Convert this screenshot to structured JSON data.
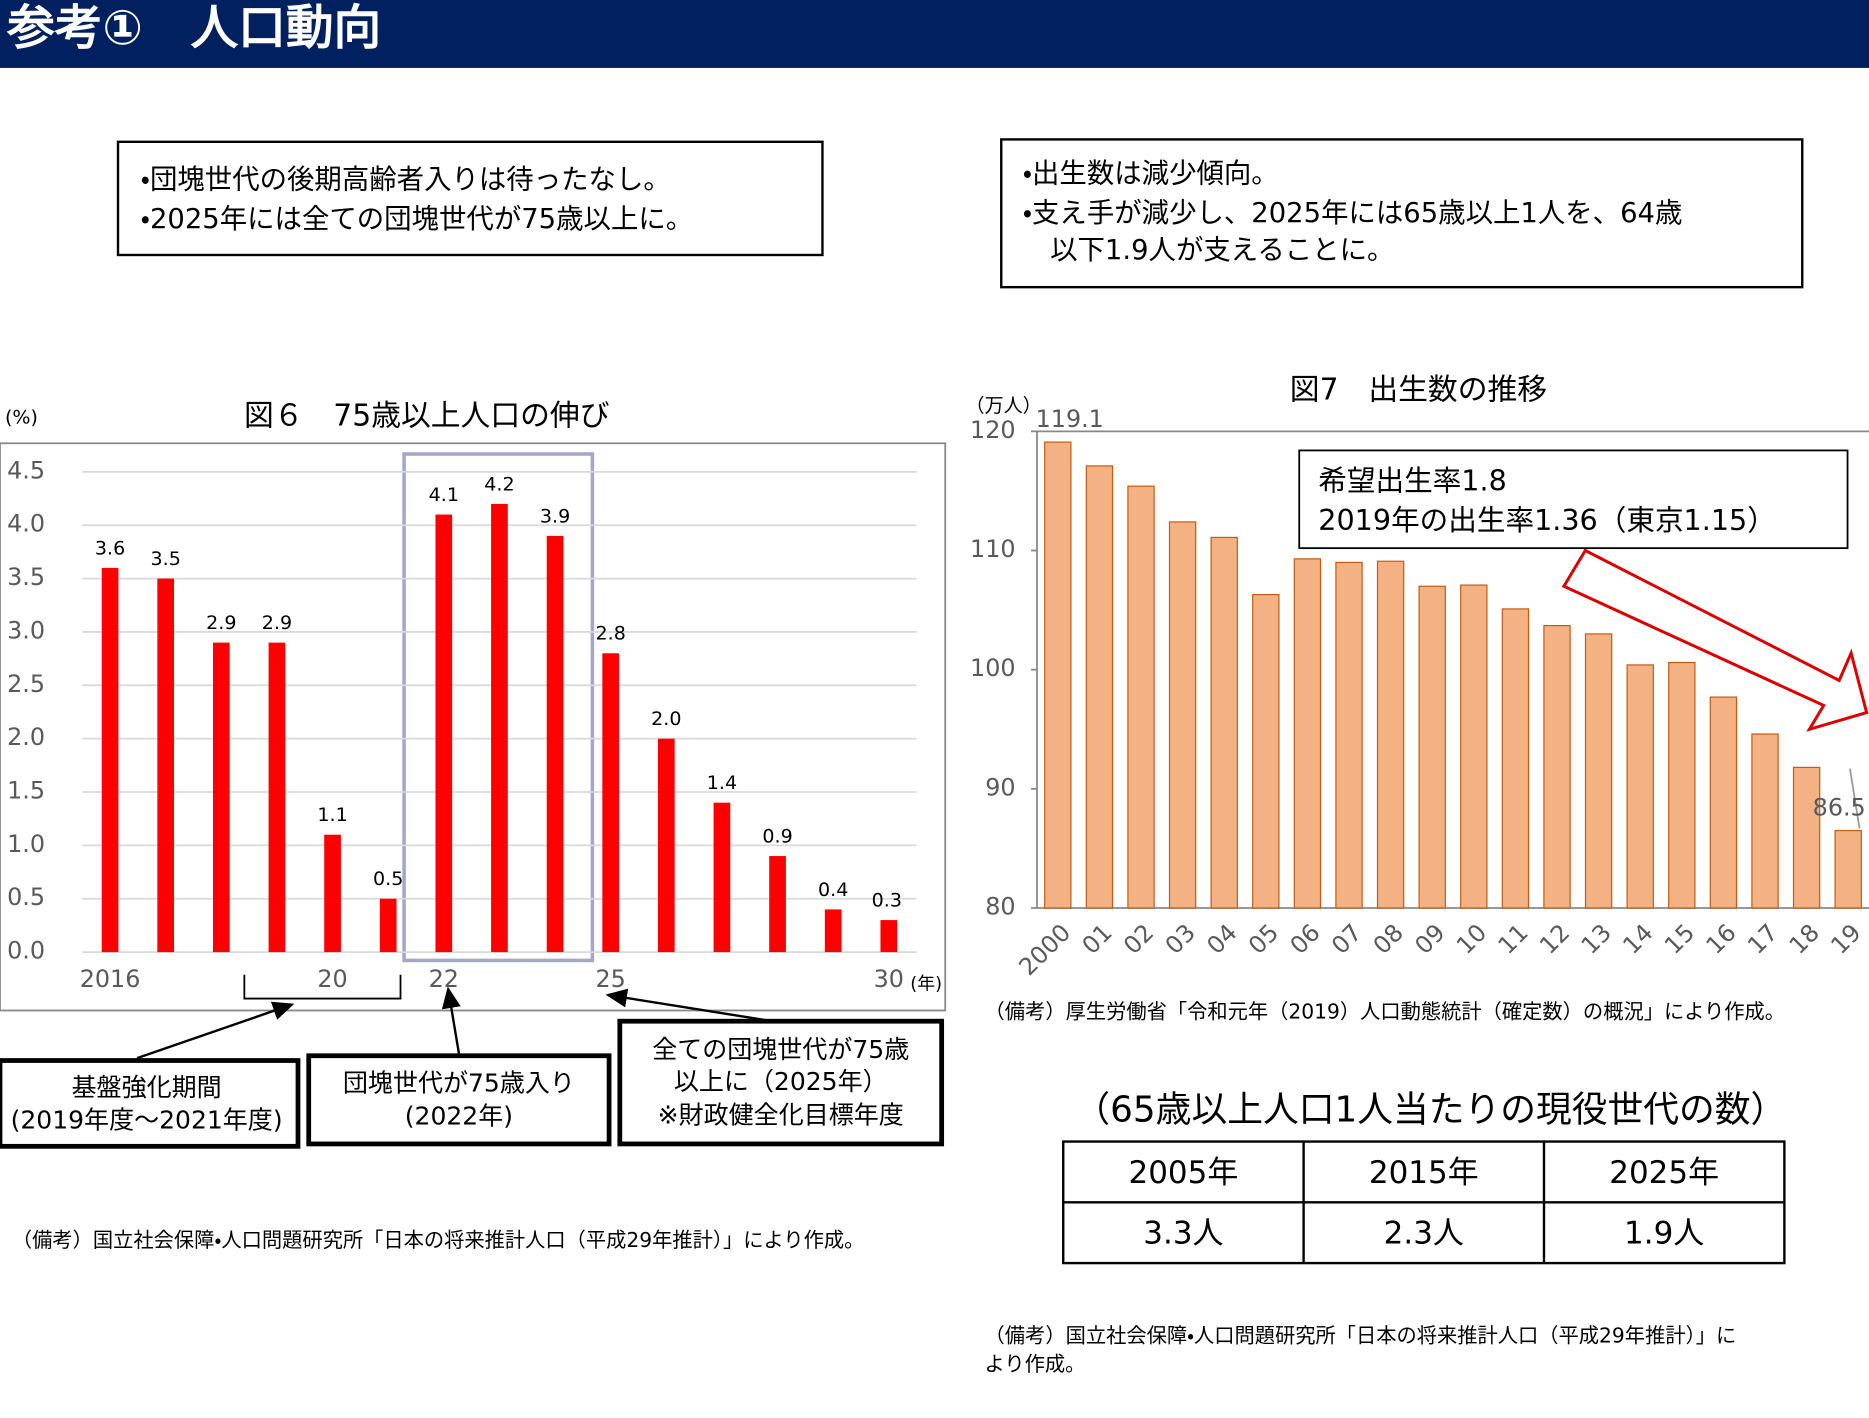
{
  "header": {
    "title": "参考①　人口動向"
  },
  "notes": [
    {
      "lines": [
        "・団塊世代の後期高齢者入りは待ったなし。",
        "・2025年には全ての団塊世代が75歳以上に。"
      ]
    },
    {
      "lines": [
        "・出生数は減少傾向。",
        "・支え手が減少し、2025年には65歳以上1人を、64歳",
        "　以下1.9人が支えることに。"
      ]
    }
  ],
  "chart_data": [
    {
      "type": "bar",
      "title": "図６　75歳以上人口の伸び",
      "y_label": "(%)",
      "x_label": "(年)",
      "categories": [
        "2016",
        null,
        null,
        null,
        "20",
        null,
        "22",
        null,
        null,
        "25",
        null,
        null,
        null,
        null,
        "30"
      ],
      "values": [
        3.6,
        3.5,
        2.9,
        2.9,
        1.1,
        0.5,
        4.1,
        4.2,
        3.9,
        2.8,
        2.0,
        1.4,
        0.9,
        0.4,
        0.3
      ],
      "value_labels": [
        "3.6",
        "3.5",
        "2.9",
        "2.9",
        "1.1",
        "0.5",
        "4.1",
        "4.2",
        "3.9",
        "2.8",
        "2.0",
        "1.4",
        "0.9",
        "0.4",
        "0.3"
      ],
      "color": "#ff0000",
      "ylim": [
        0,
        4.5
      ],
      "yticks": [
        {
          "value": 0,
          "label": "0.0"
        },
        {
          "value": 0.5,
          "label": "0.5"
        },
        {
          "value": 1,
          "label": "1.0"
        },
        {
          "value": 1.5,
          "label": "1.5"
        },
        {
          "value": 2,
          "label": "2.0"
        },
        {
          "value": 2.5,
          "label": "2.5"
        },
        {
          "value": 3,
          "label": "3.0"
        },
        {
          "value": 3.5,
          "label": "3.5"
        },
        {
          "value": 4,
          "label": "4.0"
        },
        {
          "value": 4.5,
          "label": "4.5"
        }
      ],
      "grid": true,
      "annotations": [
        {
          "lines": [
            "基盤強化期間",
            "(2019年度～2021年度)"
          ]
        },
        {
          "lines": [
            "団塊世代が75歳入り",
            "(2022年)"
          ]
        },
        {
          "lines": [
            "全ての団塊世代が75歳",
            "以上に（2025年）",
            "※財政健全化目標年度"
          ]
        }
      ],
      "source": "（備考）国立社会保障・人口問題研究所「日本の将来推計人口（平成29年推計）」により作成。"
    },
    {
      "type": "bar",
      "title": "図7　出生数の推移",
      "y_label": "（万人）",
      "categories": [
        "2000",
        "01",
        "02",
        "03",
        "04",
        "05",
        "06",
        "07",
        "08",
        "09",
        "10",
        "11",
        "12",
        "13",
        "14",
        "15",
        "16",
        "17",
        "18",
        "19"
      ],
      "values": [
        119.1,
        117.1,
        115.4,
        112.4,
        111.1,
        106.3,
        109.3,
        109.0,
        109.1,
        107.0,
        107.1,
        105.1,
        103.7,
        103.0,
        100.4,
        100.6,
        97.7,
        94.6,
        91.8,
        86.5
      ],
      "value_labels": [
        "119.1",
        null,
        null,
        null,
        null,
        null,
        null,
        null,
        null,
        null,
        null,
        null,
        null,
        null,
        null,
        null,
        null,
        null,
        null,
        "86.5"
      ],
      "color": "#f4b183",
      "ylim": [
        80,
        120
      ],
      "yticks": [
        80,
        90,
        100,
        110,
        120
      ],
      "grid": false,
      "annotations": [
        {
          "lines": [
            "希望出生率1.8",
            "2019年の出生率1.36（東京1.15）"
          ]
        }
      ],
      "source": "（備考）厚生労働省「令和元年（2019）人口動態統計（確定数）の概況」により作成。"
    }
  ],
  "table": {
    "title": "（65歳以上人口1人当たりの現役世代の数）",
    "header": [
      "2005年",
      "2015年",
      "2025年"
    ],
    "rows": [
      [
        "3.3人",
        "2.3人",
        "1.9人"
      ]
    ],
    "source": [
      "（備考）国立社会保障・人口問題研究所「日本の将来推計人口（平成29年推計）」に",
      "より作成。"
    ]
  }
}
